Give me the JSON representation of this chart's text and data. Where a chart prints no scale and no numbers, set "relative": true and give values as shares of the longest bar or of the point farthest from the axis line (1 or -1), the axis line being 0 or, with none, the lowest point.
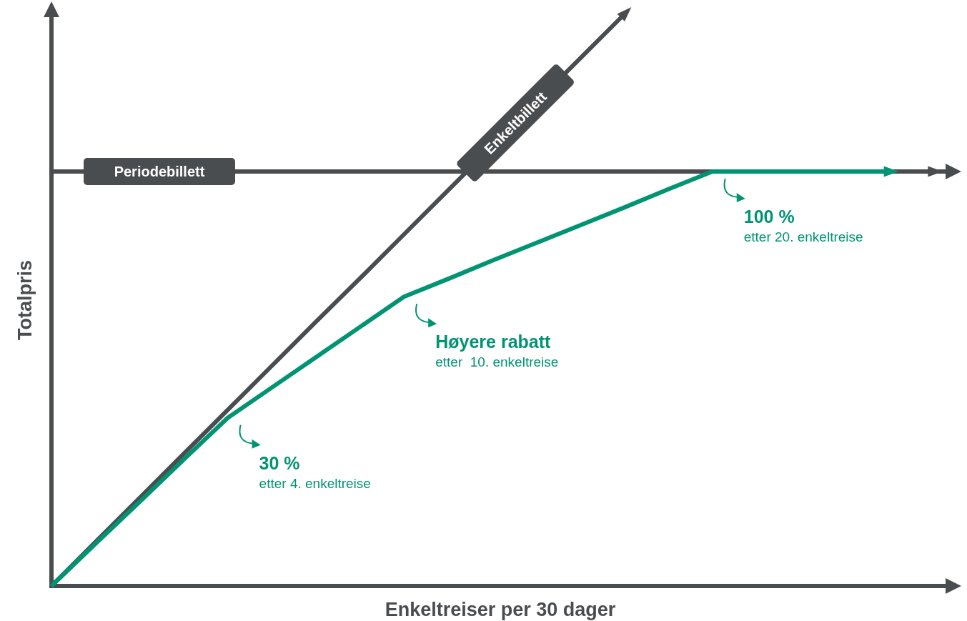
{
  "chart_data": {
    "type": "line",
    "relative": true,
    "xlabel": "Enkeltreiser per 30 dager",
    "ylabel": "Totalpris",
    "legend": false,
    "marker": "none",
    "line_style": "solid",
    "grid": false,
    "categories": [
      null,
      null,
      null,
      null,
      null,
      null,
      null,
      null,
      null,
      null,
      null,
      null,
      null,
      null,
      null,
      null,
      null,
      null,
      null,
      null,
      null
    ],
    "series": [
      {
        "name": "Enkeltbillett",
        "color": "#4a4d50",
        "values": [
          0,
          0.077,
          0.154,
          0.231,
          0.308,
          0.385,
          0.462,
          0.538,
          0.615,
          0.692,
          null,
          null,
          0.923,
          1,
          null,
          null,
          null,
          null,
          null,
          null,
          null
        ]
      },
      {
        "name": "Periodebillett",
        "color": "#4a4d50",
        "values": [
          0.725,
          null,
          null,
          null,
          null,
          0.725,
          0.725,
          0.725,
          0.725,
          0.725,
          0.725,
          0.725,
          0.725,
          0.725,
          0.725,
          null,
          null,
          null,
          null,
          null,
          0.725
        ]
      },
      {
        "color": "#009473",
        "values": [
          0,
          0.074,
          0.147,
          0.221,
          0.294,
          0.347,
          0.4,
          0.453,
          0.506,
          0.537,
          0.569,
          0.6,
          0.631,
          0.662,
          0.694,
          0.725,
          0.725,
          0.725,
          0.725,
          0.725,
          null
        ]
      }
    ],
    "annotations": [
      "30 %\netter 4. enkeltreise",
      "Høyere rabatt\netter  10. enkeltreise",
      "100 %\netter 20. enkeltreise"
    ]
  }
}
